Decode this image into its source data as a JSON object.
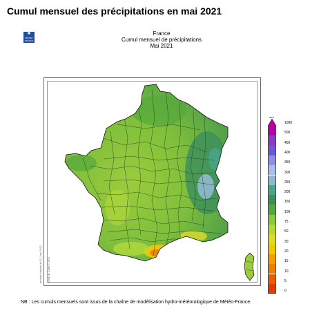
{
  "page_title": "Cumul mensuel des précipitations en mai 2021",
  "logo": {
    "icon": "meteo-france-logo-icon",
    "text": "MÉTÉO FRANCE"
  },
  "header": {
    "line1": "France",
    "line2": "Cumul mensuel de précipitations",
    "line3": "Mai 2021"
  },
  "side_note": "produit élaboré le 02 Juin 2021",
  "copyright": "Fond de Carte © IGN",
  "legend": {
    "unit": "mm",
    "labels": [
      "1000",
      "500",
      "450",
      "400",
      "350",
      "300",
      "250",
      "200",
      "150",
      "100",
      "75",
      "50",
      "30",
      "20",
      "15",
      "10",
      "5",
      "0"
    ],
    "colors": [
      "#b400a0",
      "#8a3cc8",
      "#6a5ad8",
      "#8f8fe8",
      "#a8bfe8",
      "#8fb9d0",
      "#4aa58a",
      "#3c8f5c",
      "#56a83c",
      "#8cc83c",
      "#b4d83c",
      "#dcdc28",
      "#f0c800",
      "#f0a000",
      "#f08000",
      "#f05a00",
      "#e03c00"
    ]
  },
  "footnote": "NB : Les cumuls mensuels sont issus de la chaîne de modélisation hydro-météorologique de Météo-France."
}
